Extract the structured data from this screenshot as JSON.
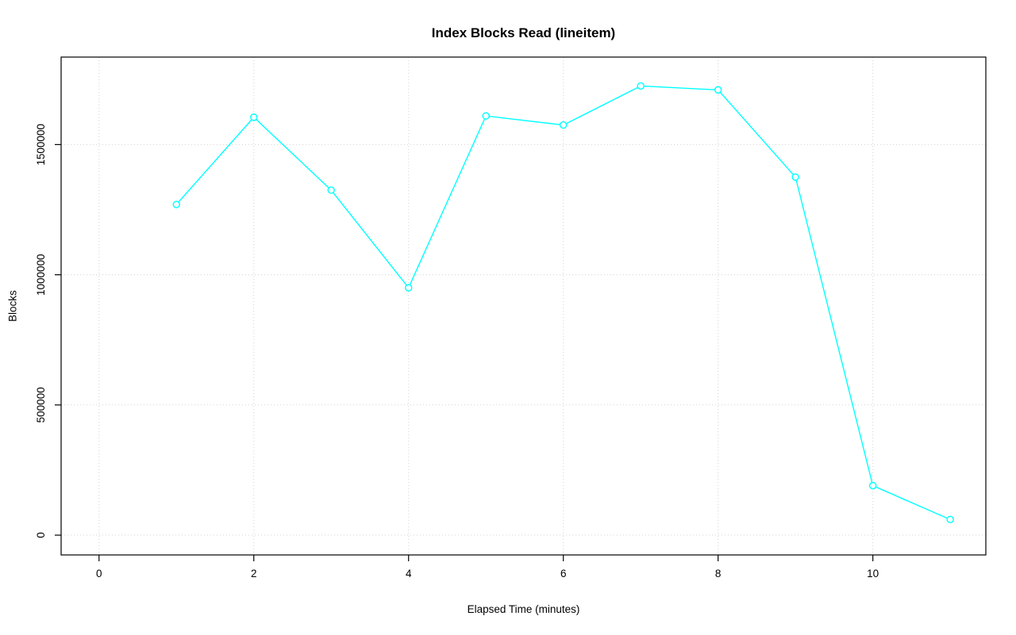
{
  "chart_data": {
    "type": "line",
    "title": "Index Blocks Read (lineitem)",
    "xlabel": "Elapsed Time (minutes)",
    "ylabel": "Blocks",
    "x": [
      1,
      2,
      3,
      4,
      5,
      6,
      7,
      8,
      9,
      10,
      11
    ],
    "y": [
      1270000,
      1605000,
      1325000,
      950000,
      1610000,
      1575000,
      1725000,
      1710000,
      1375000,
      190000,
      60000
    ],
    "xlim": [
      -0.49,
      11.46
    ],
    "ylim": [
      -76000,
      1836000
    ],
    "xticks": [
      0,
      2,
      4,
      6,
      8,
      10
    ],
    "xtick_labels": [
      "0",
      "2",
      "4",
      "6",
      "8",
      "10"
    ],
    "yticks": [
      0,
      500000,
      1000000,
      1500000
    ],
    "ytick_labels": [
      "0",
      "500000",
      "1000000",
      "1500000"
    ],
    "grid": true,
    "grid_style": "dotted",
    "legend_position": "none",
    "marker": "open-circle",
    "line_color": "#00ffff",
    "grid_color": "#d3d3d3",
    "axis_color": "#000000",
    "text_color": "#000000",
    "background_color": "#ffffff"
  }
}
